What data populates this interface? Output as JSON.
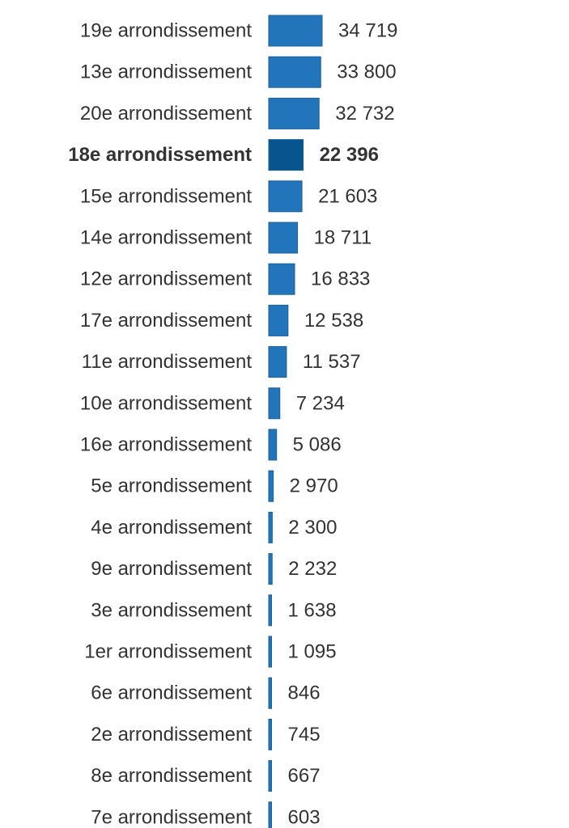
{
  "chart_data": {
    "type": "bar",
    "orientation": "horizontal",
    "grid": false,
    "legend": "none",
    "highlight_category": "18e arrondissement",
    "colors": {
      "bar": "#2274bb",
      "bar_highlight": "#08548e",
      "bar_stroke": "#1a5f9a",
      "text": "#333333"
    },
    "categories": [
      "19e arrondissement",
      "13e arrondissement",
      "20e arrondissement",
      "18e arrondissement",
      "15e arrondissement",
      "14e arrondissement",
      "12e arrondissement",
      "17e arrondissement",
      "11e arrondissement",
      "10e arrondissement",
      "16e arrondissement",
      "5e arrondissement",
      "4e arrondissement",
      "9e arrondissement",
      "3e arrondissement",
      "1er arrondissement",
      "6e arrondissement",
      "2e arrondissement",
      "8e arrondissement",
      "7e arrondissement"
    ],
    "values": [
      34719,
      33800,
      32732,
      22396,
      21603,
      18711,
      16833,
      12538,
      11537,
      7234,
      5086,
      2970,
      2300,
      2232,
      1638,
      1095,
      846,
      745,
      667,
      603
    ],
    "value_labels": [
      "34 719",
      "33 800",
      "32 732",
      "22 396",
      "21 603",
      "18 711",
      "16 833",
      "12 538",
      "11 537",
      "7 234",
      "5 086",
      "2 970",
      "2 300",
      "2 232",
      "1 638",
      "1 095",
      "846",
      "745",
      "667",
      "603"
    ],
    "xlim": [
      0,
      34719
    ]
  }
}
